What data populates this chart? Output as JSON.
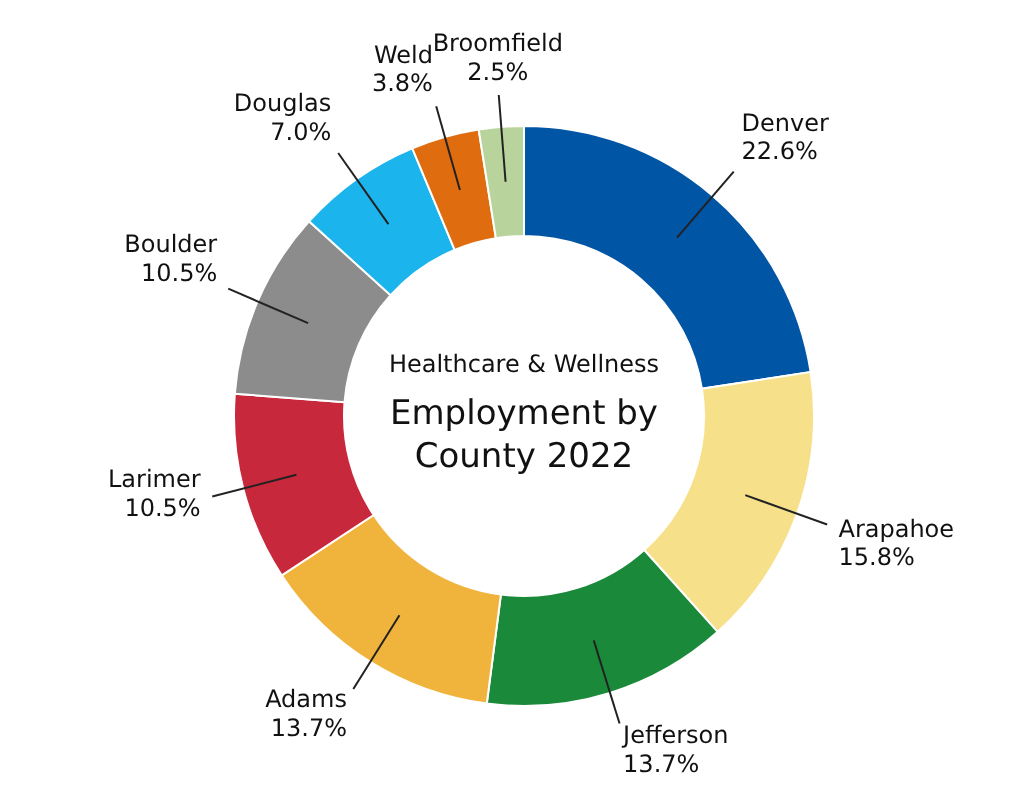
{
  "chart_data": {
    "type": "donut",
    "subtitle": "Healthcare & Wellness",
    "title": "Employment by County 2022",
    "categories": [
      "Denver",
      "Arapahoe",
      "Jefferson",
      "Adams",
      "Larimer",
      "Boulder",
      "Douglas",
      "Weld",
      "Broomfield"
    ],
    "values": [
      22.6,
      15.8,
      13.7,
      13.7,
      10.5,
      10.5,
      7.0,
      3.8,
      2.5
    ],
    "value_labels": [
      "22.6%",
      "15.8%",
      "13.7%",
      "13.7%",
      "10.5%",
      "10.5%",
      "7.0%",
      "3.8%",
      "2.5%"
    ],
    "colors": [
      "#0055a5",
      "#f7e08a",
      "#1a8a3a",
      "#f0b43c",
      "#c8283c",
      "#8c8c8c",
      "#1cb4ec",
      "#e06c10",
      "#b8d49c"
    ]
  }
}
